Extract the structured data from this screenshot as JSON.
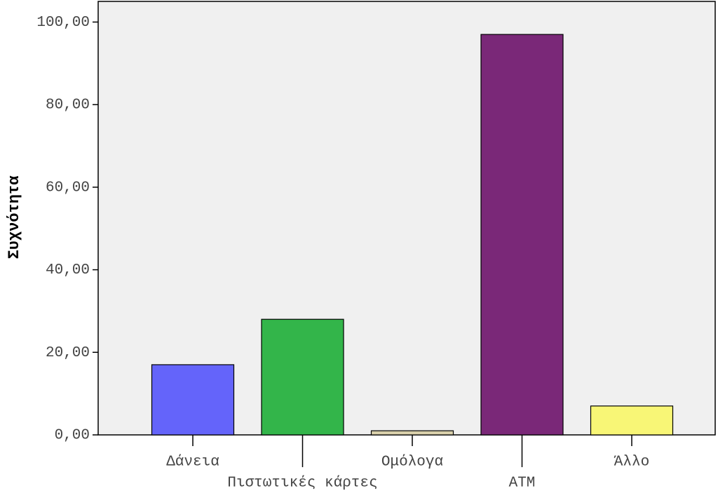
{
  "chart_data": {
    "type": "bar",
    "y_label": "Συχνότητα",
    "categories": [
      "Δάνεια",
      "Πιστωτικές κάρτες",
      "Ομόλογα",
      "ATM",
      "Άλλο"
    ],
    "values": [
      17,
      28,
      1,
      97,
      7
    ],
    "colors": [
      "#6464fa",
      "#33b54a",
      "#d9d0ab",
      "#7a2878",
      "#f8f676"
    ],
    "ylim": [
      0,
      105
    ],
    "yticks": [
      {
        "value": 0,
        "label": "0,00"
      },
      {
        "value": 20,
        "label": "20,00"
      },
      {
        "value": 40,
        "label": "40,00"
      },
      {
        "value": 60,
        "label": "60,00"
      },
      {
        "value": 80,
        "label": "80,00"
      },
      {
        "value": 100,
        "label": "100,00"
      }
    ]
  }
}
